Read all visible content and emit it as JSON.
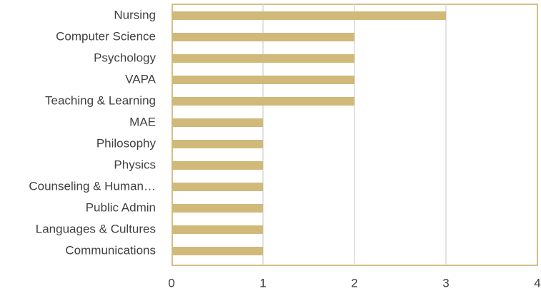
{
  "chart_data": {
    "type": "barh",
    "categories": [
      "Nursing",
      "Computer Science",
      "Psychology",
      "VAPA",
      "Teaching & Learning",
      "MAE",
      "Philosophy",
      "Physics",
      "Counseling & Human…",
      "Public Admin",
      "Languages & Cultures",
      "Communications"
    ],
    "values": [
      3,
      2,
      2,
      2,
      2,
      1,
      1,
      1,
      1,
      1,
      1,
      1
    ],
    "color": "#d1b97a",
    "xlim": [
      0,
      4
    ],
    "xticks": [
      0,
      1,
      2,
      3,
      4
    ],
    "grid": true
  }
}
